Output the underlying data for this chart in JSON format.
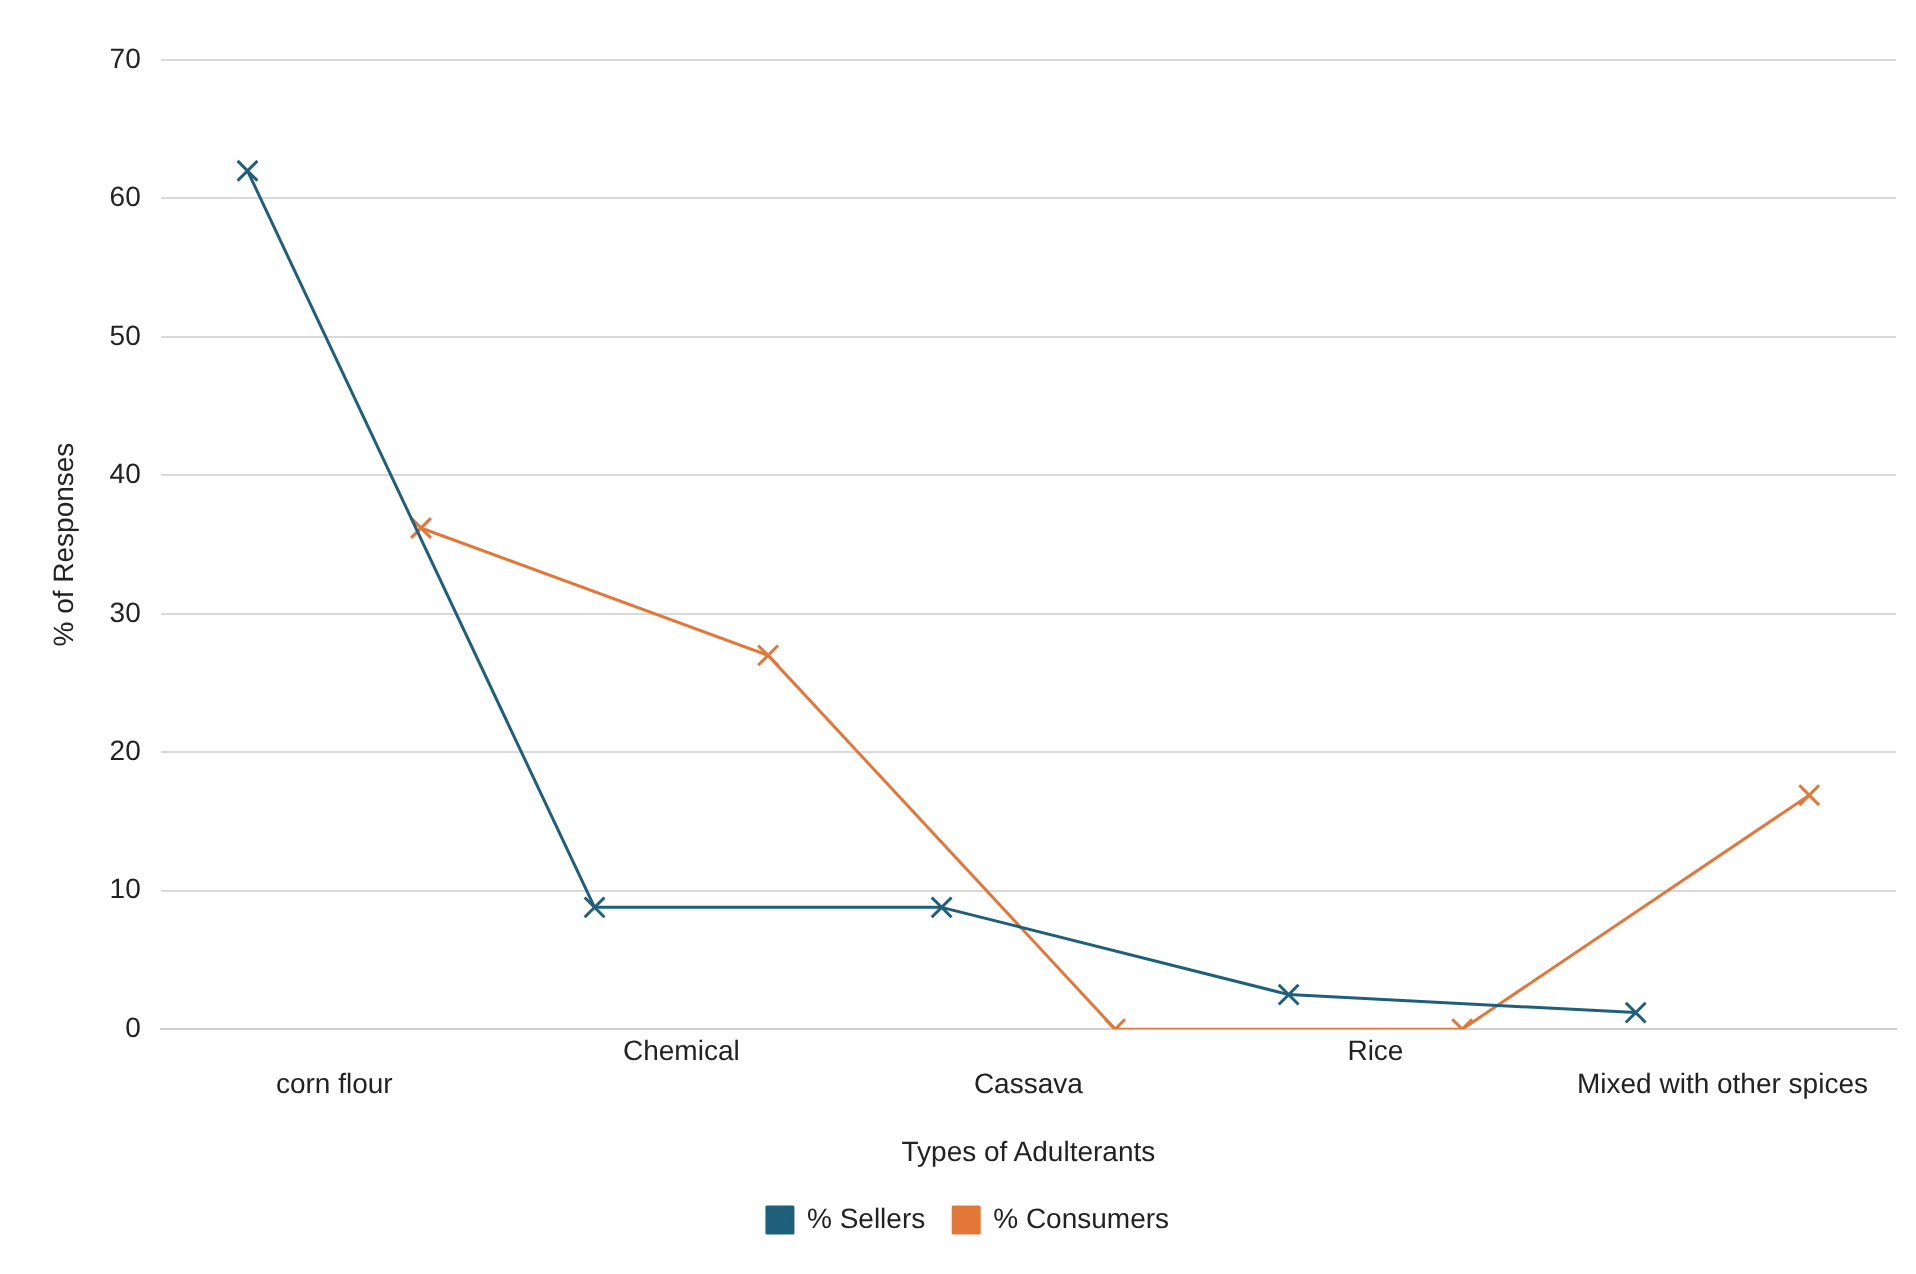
{
  "chart_data": {
    "type": "line",
    "xlabel": "Types of Adulterants",
    "ylabel": "% of Responses",
    "categories": [
      "corn flour",
      "Chemical",
      "Cassava",
      "Rice",
      "Mixed with other spices"
    ],
    "series": [
      {
        "name": "% Sellers",
        "color": "#1f5f7a",
        "values": [
          62,
          8.8,
          8.8,
          2.5,
          1.2
        ]
      },
      {
        "name": "% Consumers",
        "color": "#e2773a",
        "values": [
          36.2,
          27,
          0,
          0,
          16.9
        ]
      }
    ],
    "ylim": [
      0,
      70
    ],
    "yticks": [
      0,
      10,
      20,
      30,
      40,
      50,
      60,
      70
    ],
    "grid": "y",
    "legend": "bottom",
    "marker": "cross",
    "line_style": "solid"
  }
}
